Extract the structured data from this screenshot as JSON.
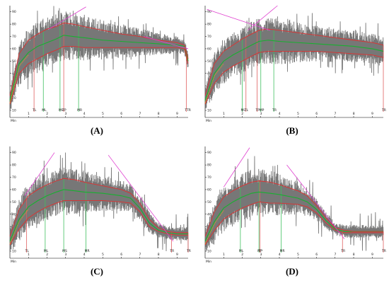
{
  "captions": [
    "(A)",
    "(B)",
    "(C)",
    "(D)"
  ],
  "colors": {
    "raw": "#707070",
    "envelope": "#e03030",
    "mean": "#18b030",
    "tangent": "#e040d0",
    "vline_red": "#e06060",
    "vline_green": "#40c060",
    "axis": "#000000"
  },
  "chart_data": [
    {
      "type": "line",
      "panel": "A",
      "x_unit": "Min",
      "xlim": [
        0,
        9.6
      ],
      "ylim": [
        10,
        95
      ],
      "y_ticks": [
        10,
        20,
        30,
        40,
        50,
        60,
        70,
        80,
        90
      ],
      "x_ticks": [
        1,
        2,
        3,
        4,
        5,
        6,
        7,
        8,
        9
      ],
      "raw_noise": 14,
      "series": [
        {
          "role": "mean",
          "x": [
            0,
            0.5,
            1,
            1.5,
            2,
            2.5,
            2.9,
            3.4,
            4,
            5,
            6,
            7,
            8,
            9,
            9.4,
            9.6
          ],
          "y": [
            18,
            48,
            57,
            62,
            65,
            68,
            71,
            70,
            69,
            67,
            66,
            65,
            64,
            63,
            62,
            50
          ]
        },
        {
          "role": "upper",
          "x": [
            0,
            0.5,
            1,
            1.5,
            2,
            2.5,
            2.9,
            3.4,
            4,
            5,
            6,
            7,
            8,
            9,
            9.4,
            9.6
          ],
          "y": [
            22,
            56,
            67,
            72,
            76,
            78,
            81,
            80,
            78,
            75,
            72,
            70,
            67,
            65,
            63,
            52
          ]
        },
        {
          "role": "lower",
          "x": [
            0,
            0.5,
            1,
            1.5,
            2,
            2.5,
            2.9,
            3.4,
            4,
            5,
            6,
            7,
            8,
            9,
            9.4,
            9.6
          ],
          "y": [
            15,
            40,
            48,
            52,
            56,
            59,
            62,
            62,
            61,
            61,
            61,
            61,
            61,
            61,
            60,
            48
          ]
        }
      ],
      "tangents": [
        {
          "x": [
            2.1,
            4.1
          ],
          "y": [
            76,
            94
          ]
        },
        {
          "x": [
            7.2,
            9.6
          ],
          "y": [
            70,
            60
          ]
        }
      ],
      "markers": [
        {
          "label": "TL",
          "x": 1.3,
          "color": "red"
        },
        {
          "label": "ML",
          "x": 1.8,
          "color": "green"
        },
        {
          "label": "MS",
          "x": 2.7,
          "color": "green"
        },
        {
          "label": "TP",
          "x": 2.9,
          "color": "red"
        },
        {
          "label": "MR",
          "x": 3.7,
          "color": "green"
        },
        {
          "label": "TTR",
          "x": 9.5,
          "color": "red"
        }
      ]
    },
    {
      "type": "line",
      "panel": "B",
      "x_unit": "Min",
      "xlim": [
        0,
        9.6
      ],
      "ylim": [
        10,
        95
      ],
      "y_ticks": [
        10,
        20,
        30,
        40,
        50,
        60,
        70,
        80,
        90
      ],
      "x_ticks": [
        1,
        2,
        3,
        4,
        5,
        6,
        7,
        8,
        9
      ],
      "raw_noise": 13,
      "series": [
        {
          "role": "mean",
          "x": [
            0,
            0.5,
            1,
            1.5,
            2,
            2.5,
            2.9,
            3.4,
            4,
            5,
            6,
            7,
            8,
            9,
            9.6
          ],
          "y": [
            18,
            40,
            50,
            55,
            59,
            63,
            66,
            67,
            66,
            65,
            64,
            63,
            62,
            60,
            58
          ]
        },
        {
          "role": "upper",
          "x": [
            0,
            0.5,
            1,
            1.5,
            2,
            2.5,
            2.9,
            3.4,
            4,
            5,
            6,
            7,
            8,
            9,
            9.6
          ],
          "y": [
            22,
            48,
            58,
            63,
            68,
            72,
            75,
            76,
            75,
            73,
            71,
            69,
            67,
            65,
            63
          ]
        },
        {
          "role": "lower",
          "x": [
            0,
            0.5,
            1,
            1.5,
            2,
            2.5,
            2.9,
            3.4,
            4,
            5,
            6,
            7,
            8,
            9,
            9.6
          ],
          "y": [
            15,
            32,
            41,
            46,
            50,
            54,
            57,
            58,
            58,
            58,
            58,
            57,
            56,
            55,
            53
          ]
        }
      ],
      "tangents": [
        {
          "x": [
            2.3,
            3.9
          ],
          "y": [
            75,
            95
          ]
        },
        {
          "x": [
            0.1,
            3.5
          ],
          "y": [
            92,
            75
          ]
        }
      ],
      "markers": [
        {
          "label": "ML",
          "x": 2.0,
          "color": "green"
        },
        {
          "label": "TL",
          "x": 2.2,
          "color": "red"
        },
        {
          "label": "TP",
          "x": 2.8,
          "color": "red"
        },
        {
          "label": "MP",
          "x": 3.0,
          "color": "green"
        },
        {
          "label": "TR",
          "x": 3.7,
          "color": "green"
        },
        {
          "label": "TR",
          "x": 9.6,
          "color": "red"
        }
      ]
    },
    {
      "type": "line",
      "panel": "C",
      "x_unit": "Min",
      "xlim": [
        0,
        9.6
      ],
      "ylim": [
        10,
        95
      ],
      "y_ticks": [
        10,
        20,
        30,
        40,
        50,
        60,
        70,
        80,
        90
      ],
      "x_ticks": [
        1,
        2,
        3,
        4,
        5,
        6,
        7,
        8,
        9
      ],
      "raw_noise": 15,
      "series": [
        {
          "role": "mean",
          "x": [
            0,
            0.5,
            1,
            1.5,
            2,
            2.5,
            2.9,
            3.5,
            4,
            5,
            6,
            6.5,
            7,
            7.5,
            8,
            8.5,
            9,
            9.6
          ],
          "y": [
            18,
            36,
            46,
            51,
            55,
            58,
            60,
            59,
            58,
            57,
            55,
            53,
            45,
            33,
            27,
            25,
            24,
            24
          ]
        },
        {
          "role": "upper",
          "x": [
            0,
            0.5,
            1,
            1.5,
            2,
            2.5,
            2.9,
            3.5,
            4,
            5,
            6,
            6.5,
            7,
            7.5,
            8,
            8.5,
            9,
            9.6
          ],
          "y": [
            22,
            44,
            55,
            60,
            64,
            67,
            69,
            68,
            66,
            63,
            60,
            57,
            49,
            36,
            29,
            26,
            25,
            25
          ]
        },
        {
          "role": "lower",
          "x": [
            0,
            0.5,
            1,
            1.5,
            2,
            2.5,
            2.9,
            3.5,
            4,
            5,
            6,
            6.5,
            7,
            7.5,
            8,
            8.5,
            9,
            9.6
          ],
          "y": [
            15,
            28,
            37,
            42,
            46,
            49,
            51,
            51,
            51,
            51,
            50,
            49,
            42,
            30,
            26,
            24,
            23,
            23
          ]
        }
      ],
      "tangents": [
        {
          "x": [
            0.8,
            2.4
          ],
          "y": [
            55,
            90
          ]
        },
        {
          "x": [
            5.3,
            8.8
          ],
          "y": [
            88,
            18
          ]
        }
      ],
      "markers": [
        {
          "label": "TL",
          "x": 0.9,
          "color": "red"
        },
        {
          "label": "ML",
          "x": 1.9,
          "color": "green"
        },
        {
          "label": "MS",
          "x": 2.9,
          "color": "green"
        },
        {
          "label": "MR",
          "x": 4.1,
          "color": "green"
        },
        {
          "label": "TR",
          "x": 8.7,
          "color": "red"
        },
        {
          "label": "TR",
          "x": 9.6,
          "color": "red"
        }
      ]
    },
    {
      "type": "line",
      "panel": "D",
      "x_unit": "Min",
      "xlim": [
        0,
        9.6
      ],
      "ylim": [
        10,
        95
      ],
      "y_ticks": [
        10,
        20,
        30,
        40,
        50,
        60,
        70,
        80,
        90
      ],
      "x_ticks": [
        1,
        2,
        3,
        4,
        5,
        6,
        7,
        8,
        9
      ],
      "raw_noise": 14,
      "series": [
        {
          "role": "mean",
          "x": [
            0,
            0.5,
            1,
            1.5,
            2,
            2.5,
            2.9,
            3.5,
            4,
            5,
            5.5,
            6,
            6.5,
            7,
            7.5,
            8,
            9,
            9.6
          ],
          "y": [
            18,
            34,
            45,
            50,
            54,
            57,
            58,
            57,
            56,
            53,
            50,
            44,
            35,
            28,
            26,
            26,
            26,
            26
          ]
        },
        {
          "role": "upper",
          "x": [
            0,
            0.5,
            1,
            1.5,
            2,
            2.5,
            2.9,
            3.5,
            4,
            5,
            5.5,
            6,
            6.5,
            7,
            7.5,
            8,
            9,
            9.6
          ],
          "y": [
            22,
            42,
            54,
            59,
            63,
            66,
            67,
            66,
            64,
            59,
            55,
            47,
            37,
            29,
            27,
            26,
            26,
            26
          ]
        },
        {
          "role": "lower",
          "x": [
            0,
            0.5,
            1,
            1.5,
            2,
            2.5,
            2.9,
            3.5,
            4,
            5,
            5.5,
            6,
            6.5,
            7,
            7.5,
            8,
            9,
            9.6
          ],
          "y": [
            15,
            27,
            36,
            41,
            45,
            48,
            50,
            49,
            49,
            48,
            46,
            41,
            33,
            27,
            25,
            25,
            25,
            25
          ]
        }
      ],
      "tangents": [
        {
          "x": [
            1.0,
            2.4
          ],
          "y": [
            62,
            94
          ]
        },
        {
          "x": [
            4.4,
            7.5
          ],
          "y": [
            80,
            20
          ]
        }
      ],
      "markers": [
        {
          "label": "ML",
          "x": 1.9,
          "color": "green"
        },
        {
          "label": "MP",
          "x": 2.9,
          "color": "green"
        },
        {
          "label": "TP",
          "x": 2.95,
          "color": "red"
        },
        {
          "label": "MR",
          "x": 4.1,
          "color": "green"
        },
        {
          "label": "TR",
          "x": 7.4,
          "color": "red"
        },
        {
          "label": "TR",
          "x": 9.6,
          "color": "red"
        }
      ]
    }
  ]
}
